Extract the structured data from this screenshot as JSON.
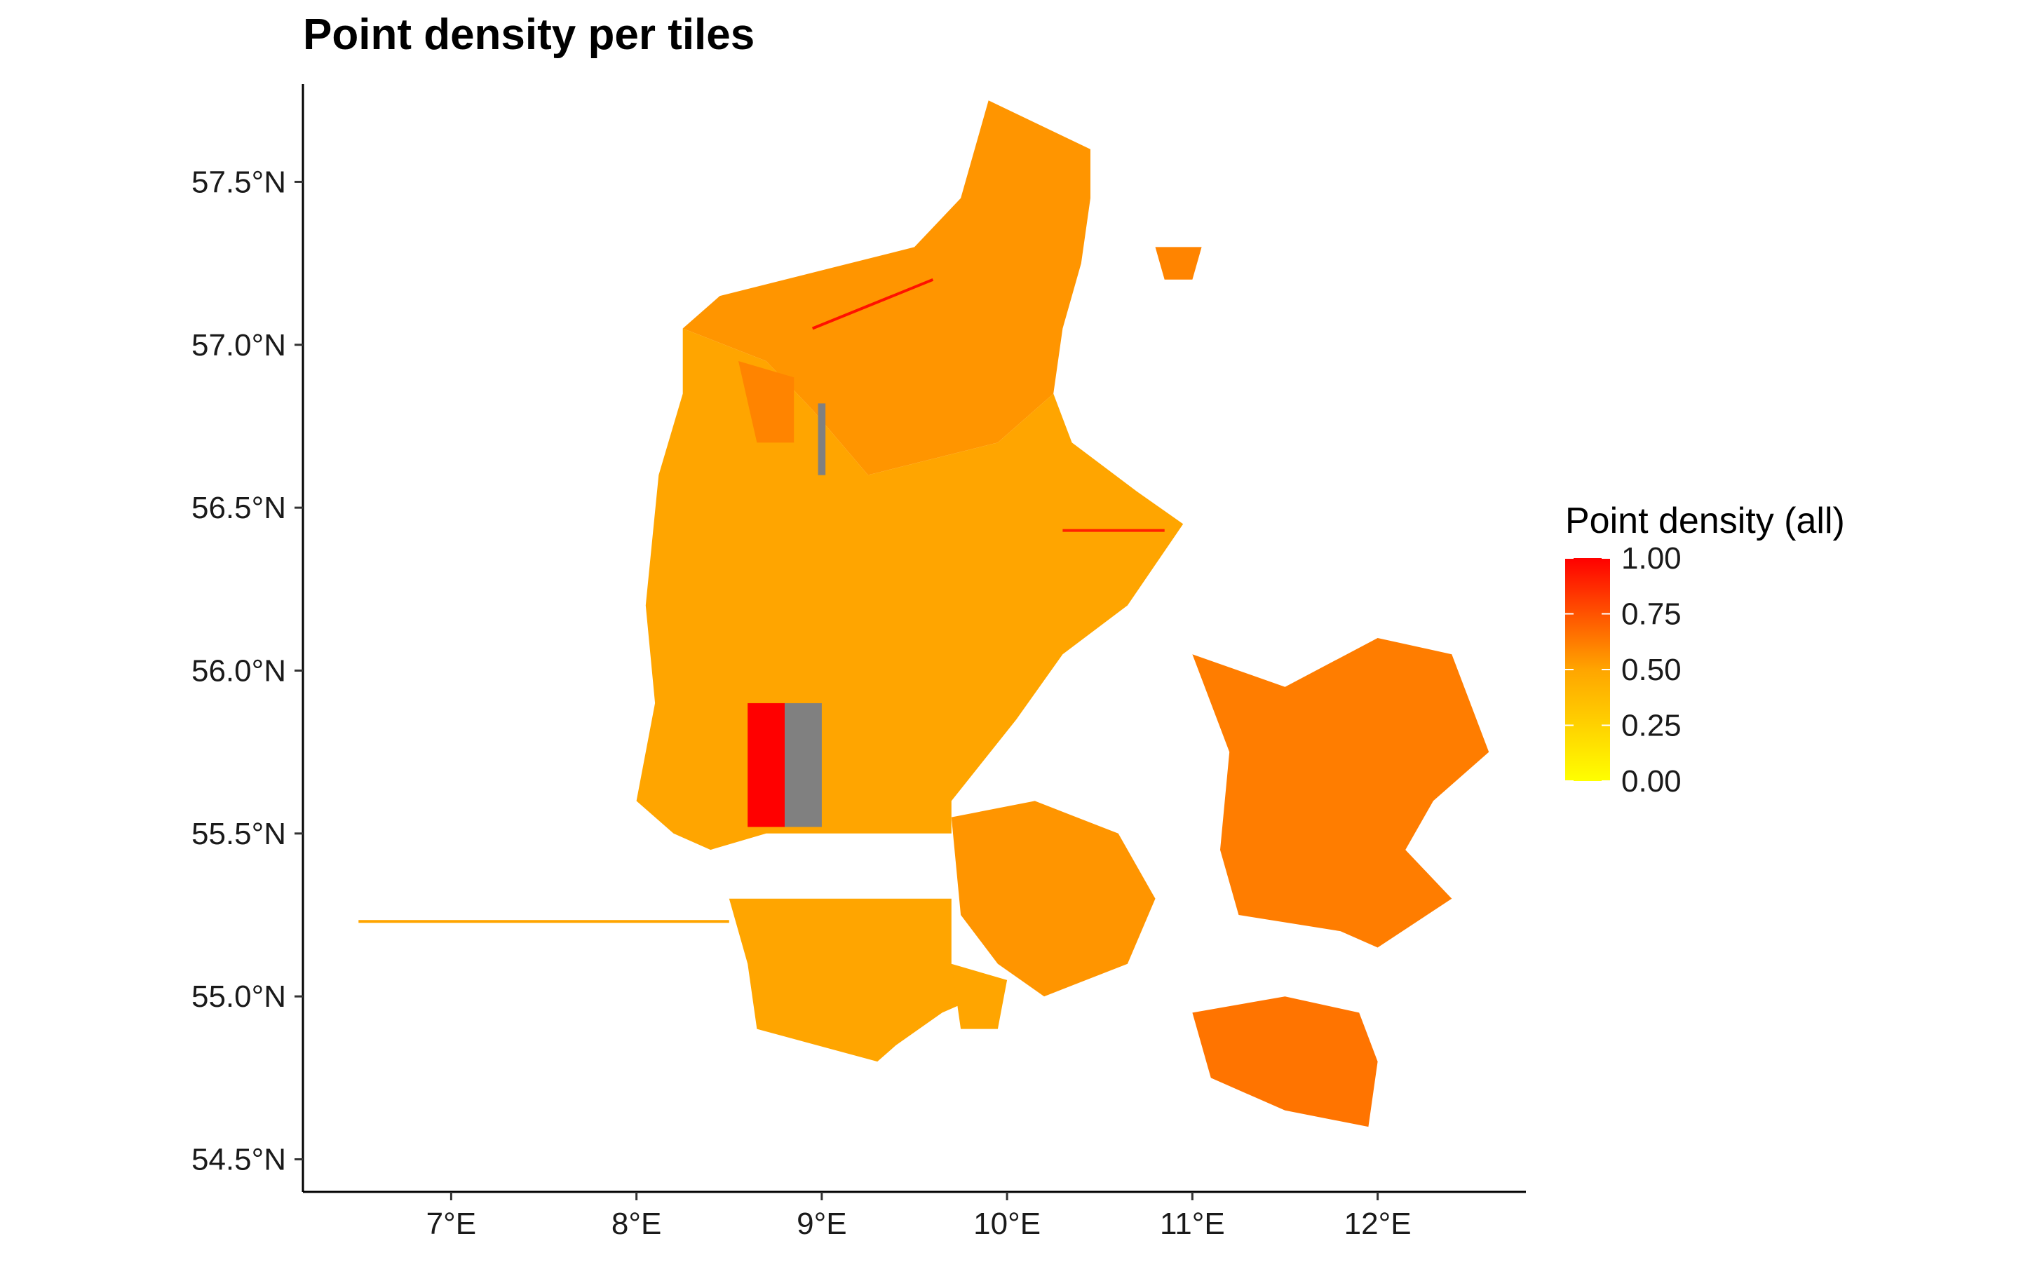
{
  "title": "Point density per tiles",
  "colors": {
    "low": "#ffff00",
    "mid": "#ffa500",
    "high": "#ff0000",
    "nodata": "#808080",
    "ocean": "#ffffff"
  },
  "chart_data": {
    "type": "heatmap",
    "title": "Point density per tiles",
    "xlabel": "",
    "ylabel": "",
    "xlim": [
      6.2,
      12.8
    ],
    "ylim": [
      54.4,
      57.8
    ],
    "x_ticks": [
      {
        "value": 7,
        "label": "7°E"
      },
      {
        "value": 8,
        "label": "8°E"
      },
      {
        "value": 9,
        "label": "9°E"
      },
      {
        "value": 10,
        "label": "10°E"
      },
      {
        "value": 11,
        "label": "11°E"
      },
      {
        "value": 12,
        "label": "12°E"
      }
    ],
    "y_ticks": [
      {
        "value": 57.5,
        "label": "57.5°N"
      },
      {
        "value": 57.0,
        "label": "57.0°N"
      },
      {
        "value": 56.5,
        "label": "56.5°N"
      },
      {
        "value": 56.0,
        "label": "56.0°N"
      },
      {
        "value": 55.5,
        "label": "55.5°N"
      },
      {
        "value": 55.0,
        "label": "55.0°N"
      },
      {
        "value": 54.5,
        "label": "54.5°N"
      }
    ],
    "legend": {
      "title": "Point density (all)",
      "position": "right",
      "range": [
        0,
        1
      ],
      "ticks": [
        {
          "value": 1.0,
          "label": "1.00"
        },
        {
          "value": 0.75,
          "label": "0.75"
        },
        {
          "value": 0.5,
          "label": "0.50"
        },
        {
          "value": 0.25,
          "label": "0.25"
        },
        {
          "value": 0.0,
          "label": "0.00"
        }
      ]
    },
    "regions": [
      {
        "name": "north-jutland",
        "density": 0.55,
        "outline": [
          [
            9.9,
            57.75
          ],
          [
            10.45,
            57.6
          ],
          [
            10.45,
            57.45
          ],
          [
            10.4,
            57.25
          ],
          [
            10.3,
            57.05
          ],
          [
            10.25,
            56.85
          ],
          [
            9.95,
            56.7
          ],
          [
            9.25,
            56.6
          ],
          [
            8.95,
            56.8
          ],
          [
            8.7,
            56.95
          ],
          [
            8.25,
            57.05
          ],
          [
            8.45,
            57.15
          ],
          [
            9.5,
            57.3
          ],
          [
            9.75,
            57.45
          ]
        ]
      },
      {
        "name": "central-jutland",
        "density": 0.5,
        "outline": [
          [
            8.25,
            57.05
          ],
          [
            8.7,
            56.95
          ],
          [
            8.95,
            56.8
          ],
          [
            9.25,
            56.6
          ],
          [
            9.95,
            56.7
          ],
          [
            10.25,
            56.85
          ],
          [
            10.35,
            56.7
          ],
          [
            10.7,
            56.55
          ],
          [
            10.95,
            56.45
          ],
          [
            10.65,
            56.2
          ],
          [
            10.3,
            56.05
          ],
          [
            10.05,
            55.85
          ],
          [
            9.7,
            55.6
          ],
          [
            9.7,
            55.5
          ],
          [
            8.7,
            55.5
          ],
          [
            8.4,
            55.45
          ],
          [
            8.2,
            55.5
          ],
          [
            8.0,
            55.6
          ],
          [
            8.1,
            55.9
          ],
          [
            8.05,
            56.2
          ],
          [
            8.12,
            56.6
          ],
          [
            8.25,
            56.85
          ]
        ]
      },
      {
        "name": "south-jutland",
        "density": 0.5,
        "outline": [
          [
            8.5,
            55.3
          ],
          [
            9.7,
            55.3
          ],
          [
            9.7,
            55.1
          ],
          [
            9.85,
            55.0
          ],
          [
            9.65,
            54.95
          ],
          [
            9.4,
            54.85
          ],
          [
            9.3,
            54.8
          ],
          [
            8.65,
            54.9
          ],
          [
            8.6,
            55.1
          ]
        ]
      },
      {
        "name": "funen",
        "density": 0.55,
        "outline": [
          [
            9.7,
            55.55
          ],
          [
            10.15,
            55.6
          ],
          [
            10.6,
            55.5
          ],
          [
            10.8,
            55.3
          ],
          [
            10.65,
            55.1
          ],
          [
            10.2,
            55.0
          ],
          [
            9.95,
            55.1
          ],
          [
            9.75,
            55.25
          ]
        ]
      },
      {
        "name": "zealand",
        "density": 0.62,
        "outline": [
          [
            11.0,
            56.05
          ],
          [
            11.5,
            55.95
          ],
          [
            12.0,
            56.1
          ],
          [
            12.4,
            56.05
          ],
          [
            12.6,
            55.75
          ],
          [
            12.3,
            55.6
          ],
          [
            12.15,
            55.45
          ],
          [
            12.4,
            55.3
          ],
          [
            12.0,
            55.15
          ],
          [
            11.8,
            55.2
          ],
          [
            11.25,
            55.25
          ],
          [
            11.15,
            55.45
          ],
          [
            11.2,
            55.75
          ]
        ]
      },
      {
        "name": "lolland-falster",
        "density": 0.65,
        "outline": [
          [
            11.0,
            54.95
          ],
          [
            11.5,
            55.0
          ],
          [
            11.9,
            54.95
          ],
          [
            12.0,
            54.8
          ],
          [
            11.95,
            54.6
          ],
          [
            11.5,
            54.65
          ],
          [
            11.1,
            54.75
          ]
        ]
      },
      {
        "name": "mors",
        "density": 0.6,
        "outline": [
          [
            8.55,
            56.95
          ],
          [
            8.85,
            56.9
          ],
          [
            8.85,
            56.7
          ],
          [
            8.65,
            56.7
          ]
        ]
      },
      {
        "name": "als",
        "density": 0.5,
        "outline": [
          [
            9.7,
            55.1
          ],
          [
            10.0,
            55.05
          ],
          [
            9.95,
            54.9
          ],
          [
            9.75,
            54.9
          ]
        ]
      },
      {
        "name": "laeso",
        "density": 0.6,
        "outline": [
          [
            10.8,
            57.3
          ],
          [
            11.05,
            57.3
          ],
          [
            11.0,
            57.2
          ],
          [
            10.85,
            57.2
          ]
        ]
      }
    ],
    "special_tiles": [
      {
        "name": "high-density-tile",
        "density": 1.0,
        "lon": [
          8.6,
          8.8
        ],
        "lat": [
          55.52,
          55.9
        ]
      },
      {
        "name": "nodata-tile",
        "density": null,
        "lon": [
          8.8,
          9.0
        ],
        "lat": [
          55.52,
          55.9
        ]
      },
      {
        "name": "nodata-strip",
        "density": null,
        "lon": [
          8.98,
          9.02
        ],
        "lat": [
          56.6,
          56.82
        ]
      }
    ],
    "transects": [
      {
        "name": "westward-line",
        "density": 0.5,
        "lon": [
          6.5,
          8.5
        ],
        "lat": [
          55.23,
          55.23
        ]
      },
      {
        "name": "limfjord-line",
        "density": 0.95,
        "lon": [
          8.95,
          9.6
        ],
        "lat": [
          57.05,
          57.2
        ]
      },
      {
        "name": "djursland-line",
        "density": 0.9,
        "lon": [
          10.3,
          10.85
        ],
        "lat": [
          56.43,
          56.43
        ]
      }
    ]
  }
}
